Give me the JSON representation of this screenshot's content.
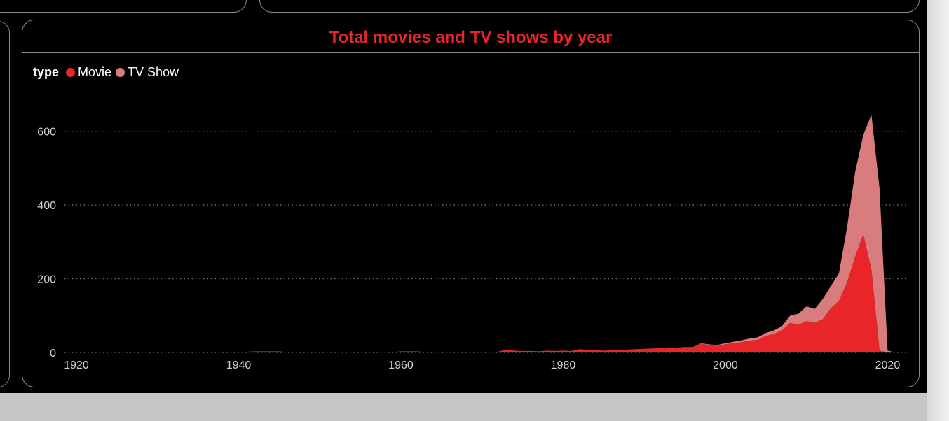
{
  "chart_data": {
    "type": "area",
    "title": "Total movies and TV shows by year",
    "legend": {
      "title": "type",
      "placement": "top-left",
      "entries": [
        "Movie",
        "TV Show"
      ]
    },
    "xlabel": "",
    "ylabel": "",
    "xlim": [
      1920,
      2021
    ],
    "ylim": [
      0,
      700
    ],
    "x_ticks": [
      1920,
      1940,
      1960,
      1980,
      2000,
      2020
    ],
    "y_ticks": [
      0,
      200,
      400,
      600
    ],
    "grid": "horizontal dotted",
    "stacked": true,
    "series": [
      {
        "name": "Movie",
        "color": "#e8262a",
        "points": [
          [
            1925,
            1
          ],
          [
            1930,
            1
          ],
          [
            1935,
            1
          ],
          [
            1940,
            1
          ],
          [
            1942,
            3
          ],
          [
            1945,
            3
          ],
          [
            1946,
            1
          ],
          [
            1950,
            1
          ],
          [
            1955,
            1
          ],
          [
            1958,
            1
          ],
          [
            1959,
            1
          ],
          [
            1960,
            3
          ],
          [
            1962,
            3
          ],
          [
            1963,
            1
          ],
          [
            1965,
            1
          ],
          [
            1968,
            1
          ],
          [
            1970,
            1
          ],
          [
            1972,
            2
          ],
          [
            1973,
            8
          ],
          [
            1974,
            5
          ],
          [
            1975,
            4
          ],
          [
            1976,
            4
          ],
          [
            1977,
            3
          ],
          [
            1978,
            5
          ],
          [
            1979,
            4
          ],
          [
            1980,
            5
          ],
          [
            1981,
            4
          ],
          [
            1982,
            9
          ],
          [
            1983,
            7
          ],
          [
            1984,
            6
          ],
          [
            1985,
            5
          ],
          [
            1986,
            6
          ],
          [
            1987,
            6
          ],
          [
            1988,
            8
          ],
          [
            1989,
            9
          ],
          [
            1990,
            10
          ],
          [
            1991,
            11
          ],
          [
            1992,
            12
          ],
          [
            1993,
            14
          ],
          [
            1994,
            13
          ],
          [
            1995,
            15
          ],
          [
            1996,
            14
          ],
          [
            1997,
            24
          ],
          [
            1998,
            20
          ],
          [
            1999,
            18
          ],
          [
            2000,
            22
          ],
          [
            2001,
            25
          ],
          [
            2002,
            28
          ],
          [
            2003,
            32
          ],
          [
            2004,
            34
          ],
          [
            2005,
            45
          ],
          [
            2006,
            50
          ],
          [
            2007,
            60
          ],
          [
            2008,
            80
          ],
          [
            2009,
            75
          ],
          [
            2010,
            85
          ],
          [
            2011,
            80
          ],
          [
            2012,
            90
          ],
          [
            2013,
            120
          ],
          [
            2014,
            140
          ],
          [
            2015,
            190
          ],
          [
            2016,
            260
          ],
          [
            2017,
            320
          ],
          [
            2018,
            225
          ],
          [
            2019,
            5
          ],
          [
            2020,
            0
          ],
          [
            2021,
            0
          ]
        ]
      },
      {
        "name": "TV Show",
        "color": "#d97c7e",
        "points": [
          [
            1925,
            0
          ],
          [
            1960,
            0
          ],
          [
            1970,
            0
          ],
          [
            1980,
            0
          ],
          [
            1990,
            0
          ],
          [
            1995,
            0
          ],
          [
            2000,
            3
          ],
          [
            2002,
            5
          ],
          [
            2004,
            7
          ],
          [
            2005,
            8
          ],
          [
            2006,
            10
          ],
          [
            2007,
            12
          ],
          [
            2008,
            20
          ],
          [
            2009,
            30
          ],
          [
            2010,
            40
          ],
          [
            2011,
            38
          ],
          [
            2012,
            55
          ],
          [
            2013,
            60
          ],
          [
            2014,
            75
          ],
          [
            2015,
            150
          ],
          [
            2016,
            230
          ],
          [
            2017,
            270
          ],
          [
            2018,
            420
          ],
          [
            2019,
            440
          ],
          [
            2020,
            5
          ],
          [
            2021,
            0
          ]
        ]
      }
    ]
  }
}
